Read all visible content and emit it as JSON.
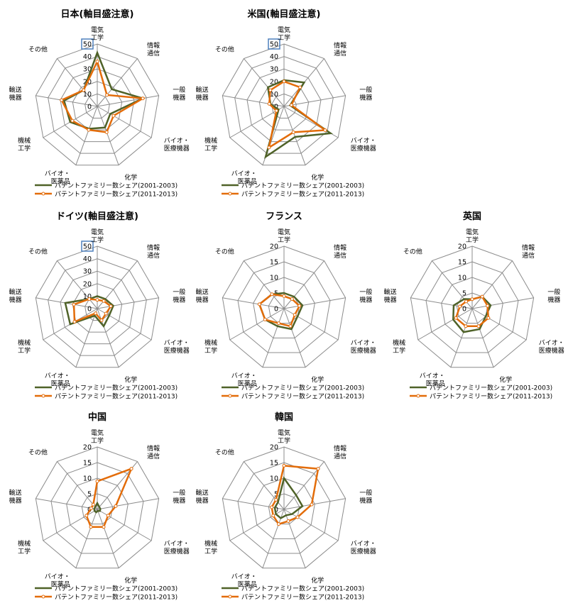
{
  "legend_labels": [
    "パテントファミリー数シェア(2001-2003)",
    "パテントファミリー数シェア(2011-2013)"
  ],
  "series_colors": [
    "#4F6228",
    "#E36C09"
  ],
  "axes": [
    [
      "電気",
      "工学"
    ],
    [
      "情報",
      "通信"
    ],
    [
      "一般",
      "機器"
    ],
    [
      "バイオ・",
      "医療機器"
    ],
    [
      "化学"
    ],
    [
      "バイオ・",
      "医薬品"
    ],
    [
      "機械",
      "工学"
    ],
    [
      "輸送",
      "機器"
    ],
    [
      "その他"
    ]
  ],
  "chart_data": [
    {
      "type": "radar",
      "title": "日本(軸目盛注意)",
      "ylim": [
        0,
        50
      ],
      "ticks": [
        "0",
        "10",
        "20",
        "30",
        "40",
        "50"
      ],
      "highlight_max_tick": true,
      "series": [
        {
          "name": "パテントファミリー数シェア(2001-2003)",
          "values": [
            43,
            18,
            37,
            12,
            18,
            19,
            25,
            27,
            17
          ]
        },
        {
          "name": "パテントファミリー数シェア(2011-2013)",
          "values": [
            36,
            12,
            37,
            15,
            22,
            20,
            23,
            29,
            17
          ]
        }
      ]
    },
    {
      "type": "radar",
      "title": "米国(軸目盛注意)",
      "ylim": [
        0,
        50
      ],
      "ticks": [
        "0",
        "10",
        "20",
        "30",
        "40",
        "50"
      ],
      "highlight_max_tick": true,
      "series": [
        {
          "name": "パテントファミリー数シェア(2001-2003)",
          "values": [
            21,
            25,
            5,
            43,
            26,
            43,
            5,
            11,
            20
          ]
        },
        {
          "name": "パテントファミリー数シェア(2011-2013)",
          "values": [
            20,
            20,
            6,
            38,
            22,
            35,
            7,
            12,
            17
          ]
        }
      ]
    },
    {
      "type": "radar",
      "title": "ドイツ(軸目盛注意)",
      "ylim": [
        0,
        50
      ],
      "ticks": [
        "0",
        "10",
        "20",
        "30",
        "40",
        "50"
      ],
      "highlight_max_tick": true,
      "series": [
        {
          "name": "パテントファミリー数シェア(2001-2003)",
          "values": [
            10,
            10,
            13,
            11,
            15,
            6,
            25,
            26,
            10
          ]
        },
        {
          "name": "パテントファミリー数シェア(2011-2013)",
          "values": [
            7,
            8,
            11,
            8,
            10,
            4,
            21,
            19,
            10
          ]
        }
      ]
    },
    {
      "type": "radar",
      "title": "フランス",
      "ylim": [
        0,
        20
      ],
      "ticks": [
        "0",
        "5",
        "10",
        "15",
        "20"
      ],
      "highlight_max_tick": false,
      "series": [
        {
          "name": "パテントファミリー数シェア(2001-2003)",
          "values": [
            5,
            5,
            6,
            5,
            7,
            6,
            7,
            8,
            6
          ]
        },
        {
          "name": "パテントファミリー数シェア(2011-2013)",
          "values": [
            4,
            4,
            5,
            4,
            6,
            5,
            7,
            8,
            6
          ]
        }
      ]
    },
    {
      "type": "radar",
      "title": "英国",
      "ylim": [
        0,
        20
      ],
      "ticks": [
        "0",
        "5",
        "10",
        "15",
        "20"
      ],
      "highlight_max_tick": false,
      "series": [
        {
          "name": "パテントファミリー数シェア(2001-2003)",
          "values": [
            3,
            5,
            6,
            5,
            7,
            8,
            7,
            6,
            4
          ]
        },
        {
          "name": "パテントファミリー数シェア(2011-2013)",
          "values": [
            3,
            5,
            5,
            6,
            6,
            6,
            6,
            4,
            3
          ]
        }
      ]
    },
    {
      "type": "radar",
      "title": "中国",
      "ylim": [
        0,
        20
      ],
      "ticks": [
        "0",
        "5",
        "10",
        "15",
        "20"
      ],
      "highlight_max_tick": false,
      "series": [
        {
          "name": "パテントファミリー数シェア(2001-2003)",
          "values": [
            2,
            1,
            1,
            1,
            0.5,
            1,
            1,
            1,
            1
          ]
        },
        {
          "name": "パテントファミリー数シェア(2011-2013)",
          "values": [
            9,
            17,
            6,
            4,
            6,
            6,
            4,
            2,
            2
          ]
        }
      ]
    },
    {
      "type": "radar",
      "title": "韓国",
      "ylim": [
        0,
        20
      ],
      "ticks": [
        "0",
        "5",
        "10",
        "15",
        "20"
      ],
      "highlight_max_tick": false,
      "series": [
        {
          "name": "パテントファミリー数シェア(2001-2003)",
          "values": [
            10,
            6,
            6,
            3,
            2,
            3,
            3,
            3,
            3
          ]
        },
        {
          "name": "パテントファミリー数シェア(2011-2013)",
          "values": [
            14,
            17,
            9,
            5,
            4,
            5,
            4,
            4,
            4
          ]
        }
      ]
    }
  ]
}
